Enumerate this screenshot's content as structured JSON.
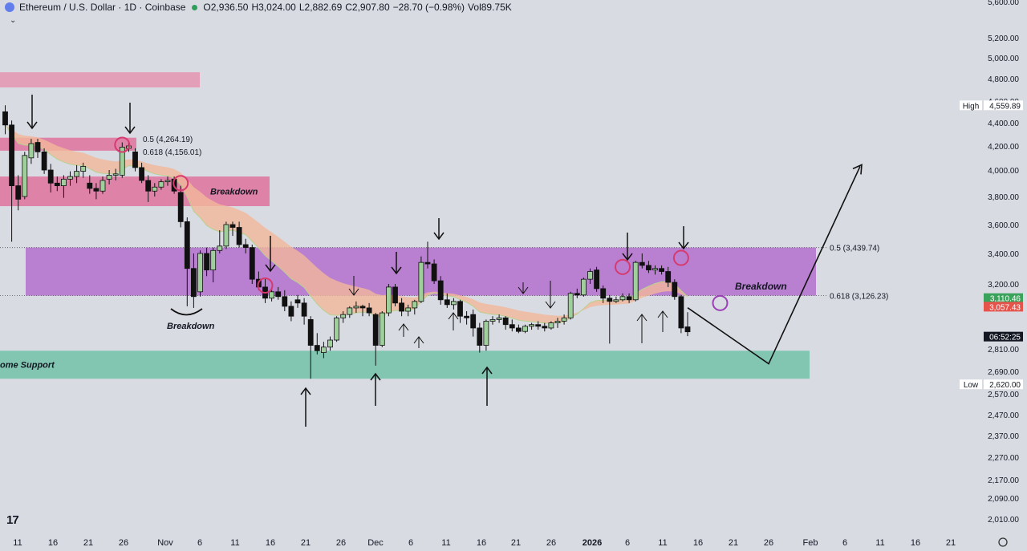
{
  "header": {
    "symbol": "Ethereum / U.S. Dollar · 1D · Coinbase",
    "open": "O2,936.50",
    "high": "H3,024.00",
    "low": "L2,882.69",
    "close": "C2,907.80",
    "change": "−28.70 (−0.98%)",
    "volume": "Vol89.75K"
  },
  "logo": "17",
  "chart_data": {
    "type": "candlestick",
    "y_axis": {
      "ticks": [
        2010,
        2090,
        2170,
        2270,
        2370,
        2470,
        2570,
        2690,
        2810,
        3200,
        3400,
        3600,
        3800,
        4000,
        4200,
        4400,
        4600,
        4800,
        5000,
        5200,
        5600
      ],
      "tick_labels": [
        "2,010.00",
        "2,090.00",
        "2,170.00",
        "2,270.00",
        "2,370.00",
        "2,470.00",
        "2,570.00",
        "2,690.00",
        "2,810.00",
        "3,200.00",
        "3,400.00",
        "3,600.00",
        "3,800.00",
        "4,000.00",
        "4,200.00",
        "4,400.00",
        "4,600.00",
        "4,800.00",
        "5,000.00",
        "5,200.00",
        "5,600.00"
      ],
      "scale": "log"
    },
    "x_axis": {
      "labels": [
        "11",
        "16",
        "21",
        "26",
        "Nov",
        "6",
        "11",
        "16",
        "21",
        "26",
        "Dec",
        "6",
        "11",
        "16",
        "21",
        "26",
        "2026",
        "6",
        "11",
        "16",
        "21",
        "26",
        "Feb",
        "6",
        "11",
        "16",
        "21"
      ],
      "bold_labels": [
        "2026"
      ]
    },
    "price_markers": [
      {
        "label": "High",
        "value": "4,559.89",
        "price": 4559.89,
        "style": "white"
      },
      {
        "label": "",
        "value": "3,110.46",
        "price": 3110.46,
        "style": "green"
      },
      {
        "label": "",
        "value": "3,057.43",
        "price": 3057.43,
        "style": "red"
      },
      {
        "label": "",
        "value": "06:52:25",
        "price": 2880,
        "style": "dark"
      },
      {
        "label": "Low",
        "value": "2,620.00",
        "price": 2620,
        "style": "white"
      }
    ],
    "fib_levels": [
      {
        "label": "0.5 (3,439.74)",
        "price": 3439.74
      },
      {
        "label": "0.618 (3,126.23)",
        "price": 3126.23
      }
    ],
    "zones": [
      {
        "type": "resistance",
        "color": "#e58fad",
        "from": 4720,
        "to": 4860,
        "label": ""
      },
      {
        "type": "resistance",
        "color": "#e06b98",
        "from": 4160,
        "to": 4270,
        "label": ""
      },
      {
        "type": "resistance",
        "color": "#e06b98",
        "from": 3730,
        "to": 3950,
        "label": "Breakdown"
      },
      {
        "type": "range",
        "color": "#b36ecc",
        "from": 3126,
        "to": 3440,
        "label": ""
      },
      {
        "type": "support",
        "color": "#6cc0a4",
        "from": 2650,
        "to": 2800,
        "label": "ome Support"
      }
    ],
    "annotations": [
      "0.5 (4,264.19)",
      "0.618 (4,156.01)",
      "Breakdown",
      "Breakdown",
      "Breakdown"
    ],
    "candles": [
      {
        "o": 4500,
        "h": 4560,
        "l": 4300,
        "c": 4380
      },
      {
        "o": 4380,
        "h": 4420,
        "l": 3480,
        "c": 3880
      },
      {
        "o": 3880,
        "h": 3960,
        "l": 3700,
        "c": 3780
      },
      {
        "o": 3800,
        "h": 4150,
        "l": 3780,
        "c": 4120
      },
      {
        "o": 4100,
        "h": 4260,
        "l": 4050,
        "c": 4220
      },
      {
        "o": 4230,
        "h": 4260,
        "l": 4100,
        "c": 4150
      },
      {
        "o": 4150,
        "h": 4180,
        "l": 3970,
        "c": 4000
      },
      {
        "o": 4000,
        "h": 4050,
        "l": 3830,
        "c": 3900
      },
      {
        "o": 3900,
        "h": 3950,
        "l": 3840,
        "c": 3880
      },
      {
        "o": 3880,
        "h": 3960,
        "l": 3790,
        "c": 3930
      },
      {
        "o": 3930,
        "h": 3990,
        "l": 3880,
        "c": 3950
      },
      {
        "o": 3950,
        "h": 4040,
        "l": 3900,
        "c": 3990
      },
      {
        "o": 3990,
        "h": 4060,
        "l": 3940,
        "c": 4030
      },
      {
        "o": 3900,
        "h": 3960,
        "l": 3820,
        "c": 3860
      },
      {
        "o": 3860,
        "h": 3900,
        "l": 3780,
        "c": 3840
      },
      {
        "o": 3840,
        "h": 3950,
        "l": 3820,
        "c": 3920
      },
      {
        "o": 3930,
        "h": 4000,
        "l": 3890,
        "c": 3960
      },
      {
        "o": 3960,
        "h": 4010,
        "l": 3920,
        "c": 3970
      },
      {
        "o": 3960,
        "h": 4230,
        "l": 3940,
        "c": 4190
      },
      {
        "o": 4180,
        "h": 4230,
        "l": 4150,
        "c": 4200
      },
      {
        "o": 4150,
        "h": 4180,
        "l": 3990,
        "c": 4020
      },
      {
        "o": 4020,
        "h": 4060,
        "l": 3900,
        "c": 3920
      },
      {
        "o": 3920,
        "h": 3960,
        "l": 3760,
        "c": 3840
      },
      {
        "o": 3840,
        "h": 3900,
        "l": 3800,
        "c": 3870
      },
      {
        "o": 3870,
        "h": 3930,
        "l": 3850,
        "c": 3910
      },
      {
        "o": 3910,
        "h": 3950,
        "l": 3880,
        "c": 3920
      },
      {
        "o": 3930,
        "h": 3950,
        "l": 3820,
        "c": 3840
      },
      {
        "o": 3830,
        "h": 3880,
        "l": 3580,
        "c": 3620
      },
      {
        "o": 3620,
        "h": 3650,
        "l": 3060,
        "c": 3300
      },
      {
        "o": 3300,
        "h": 3400,
        "l": 3050,
        "c": 3120
      },
      {
        "o": 3150,
        "h": 3420,
        "l": 3120,
        "c": 3400
      },
      {
        "o": 3400,
        "h": 3440,
        "l": 3250,
        "c": 3290
      },
      {
        "o": 3290,
        "h": 3440,
        "l": 3210,
        "c": 3420
      },
      {
        "o": 3420,
        "h": 3560,
        "l": 3400,
        "c": 3450
      },
      {
        "o": 3450,
        "h": 3620,
        "l": 3430,
        "c": 3600
      },
      {
        "o": 3600,
        "h": 3620,
        "l": 3520,
        "c": 3580
      },
      {
        "o": 3580,
        "h": 3620,
        "l": 3440,
        "c": 3460
      },
      {
        "o": 3460,
        "h": 3500,
        "l": 3400,
        "c": 3440
      },
      {
        "o": 3440,
        "h": 3460,
        "l": 3200,
        "c": 3230
      },
      {
        "o": 3230,
        "h": 3280,
        "l": 3160,
        "c": 3180
      },
      {
        "o": 3180,
        "h": 3240,
        "l": 3080,
        "c": 3110
      },
      {
        "o": 3110,
        "h": 3180,
        "l": 3090,
        "c": 3150
      },
      {
        "o": 3150,
        "h": 3180,
        "l": 3100,
        "c": 3120
      },
      {
        "o": 3120,
        "h": 3160,
        "l": 3030,
        "c": 3060
      },
      {
        "o": 3060,
        "h": 3090,
        "l": 2970,
        "c": 3000
      },
      {
        "o": 3100,
        "h": 3130,
        "l": 3050,
        "c": 3080
      },
      {
        "o": 3080,
        "h": 3110,
        "l": 2950,
        "c": 3000
      },
      {
        "o": 2980,
        "h": 3000,
        "l": 2650,
        "c": 2830
      },
      {
        "o": 2830,
        "h": 2900,
        "l": 2780,
        "c": 2800
      },
      {
        "o": 2790,
        "h": 2850,
        "l": 2760,
        "c": 2820
      },
      {
        "o": 2820,
        "h": 2880,
        "l": 2800,
        "c": 2860
      },
      {
        "o": 2860,
        "h": 3000,
        "l": 2850,
        "c": 2990
      },
      {
        "o": 2990,
        "h": 3030,
        "l": 2960,
        "c": 3010
      },
      {
        "o": 3010,
        "h": 3060,
        "l": 2990,
        "c": 3050
      },
      {
        "o": 3050,
        "h": 3090,
        "l": 3020,
        "c": 3060
      },
      {
        "o": 3060,
        "h": 3070,
        "l": 3000,
        "c": 3050
      },
      {
        "o": 3050,
        "h": 3080,
        "l": 3000,
        "c": 3020
      },
      {
        "o": 3010,
        "h": 3020,
        "l": 2720,
        "c": 2830
      },
      {
        "o": 2830,
        "h": 3030,
        "l": 2820,
        "c": 3020
      },
      {
        "o": 3020,
        "h": 3200,
        "l": 3000,
        "c": 3180
      },
      {
        "o": 3180,
        "h": 3200,
        "l": 3060,
        "c": 3080
      },
      {
        "o": 3080,
        "h": 3110,
        "l": 3000,
        "c": 3030
      },
      {
        "o": 3030,
        "h": 3070,
        "l": 3000,
        "c": 3050
      },
      {
        "o": 3050,
        "h": 3100,
        "l": 3010,
        "c": 3090
      },
      {
        "o": 3090,
        "h": 3380,
        "l": 3080,
        "c": 3340
      },
      {
        "o": 3340,
        "h": 3480,
        "l": 3300,
        "c": 3330
      },
      {
        "o": 3330,
        "h": 3360,
        "l": 3200,
        "c": 3220
      },
      {
        "o": 3220,
        "h": 3250,
        "l": 3070,
        "c": 3100
      },
      {
        "o": 3100,
        "h": 3140,
        "l": 3050,
        "c": 3070
      },
      {
        "o": 3070,
        "h": 3110,
        "l": 3040,
        "c": 3090
      },
      {
        "o": 3090,
        "h": 3100,
        "l": 2960,
        "c": 3000
      },
      {
        "o": 3000,
        "h": 3030,
        "l": 2950,
        "c": 2990
      },
      {
        "o": 3010,
        "h": 3040,
        "l": 2880,
        "c": 2930
      },
      {
        "o": 2930,
        "h": 2960,
        "l": 2790,
        "c": 2830
      },
      {
        "o": 2830,
        "h": 2980,
        "l": 2800,
        "c": 2970
      },
      {
        "o": 2970,
        "h": 3000,
        "l": 2950,
        "c": 2980
      },
      {
        "o": 2980,
        "h": 3010,
        "l": 2960,
        "c": 2990
      },
      {
        "o": 2990,
        "h": 3000,
        "l": 2920,
        "c": 2950
      },
      {
        "o": 2950,
        "h": 2980,
        "l": 2910,
        "c": 2930
      },
      {
        "o": 2930,
        "h": 2950,
        "l": 2900,
        "c": 2910
      },
      {
        "o": 2910,
        "h": 2950,
        "l": 2900,
        "c": 2940
      },
      {
        "o": 2940,
        "h": 2960,
        "l": 2920,
        "c": 2950
      },
      {
        "o": 2950,
        "h": 2970,
        "l": 2920,
        "c": 2940
      },
      {
        "o": 2940,
        "h": 2960,
        "l": 2910,
        "c": 2930
      },
      {
        "o": 2930,
        "h": 2970,
        "l": 2920,
        "c": 2960
      },
      {
        "o": 2960,
        "h": 2990,
        "l": 2930,
        "c": 2970
      },
      {
        "o": 2970,
        "h": 3010,
        "l": 2950,
        "c": 2990
      },
      {
        "o": 2990,
        "h": 3150,
        "l": 2980,
        "c": 3140
      },
      {
        "o": 3140,
        "h": 3170,
        "l": 3110,
        "c": 3130
      },
      {
        "o": 3130,
        "h": 3240,
        "l": 3120,
        "c": 3230
      },
      {
        "o": 3230,
        "h": 3300,
        "l": 3200,
        "c": 3280
      },
      {
        "o": 3290,
        "h": 3310,
        "l": 3150,
        "c": 3170
      },
      {
        "o": 3170,
        "h": 3190,
        "l": 3080,
        "c": 3110
      },
      {
        "o": 3110,
        "h": 3130,
        "l": 2840,
        "c": 3090
      },
      {
        "o": 3090,
        "h": 3120,
        "l": 3080,
        "c": 3100
      },
      {
        "o": 3100,
        "h": 3140,
        "l": 3090,
        "c": 3120
      },
      {
        "o": 3120,
        "h": 3140,
        "l": 3080,
        "c": 3100
      },
      {
        "o": 3100,
        "h": 3350,
        "l": 3090,
        "c": 3340
      },
      {
        "o": 3340,
        "h": 3400,
        "l": 3300,
        "c": 3320
      },
      {
        "o": 3320,
        "h": 3350,
        "l": 3270,
        "c": 3290
      },
      {
        "o": 3290,
        "h": 3320,
        "l": 3260,
        "c": 3300
      },
      {
        "o": 3300,
        "h": 3320,
        "l": 3260,
        "c": 3280
      },
      {
        "o": 3280,
        "h": 3310,
        "l": 3180,
        "c": 3210
      },
      {
        "o": 3210,
        "h": 3230,
        "l": 3100,
        "c": 3120
      },
      {
        "o": 3120,
        "h": 3130,
        "l": 2900,
        "c": 2930
      },
      {
        "o": 2936.5,
        "h": 3024,
        "l": 2882.69,
        "c": 2907.8
      }
    ],
    "projection": [
      {
        "label": "down",
        "x_label_ref": "26",
        "price": 2730
      },
      {
        "label": "up",
        "x_label_ref": "11",
        "price": 4030
      }
    ]
  }
}
